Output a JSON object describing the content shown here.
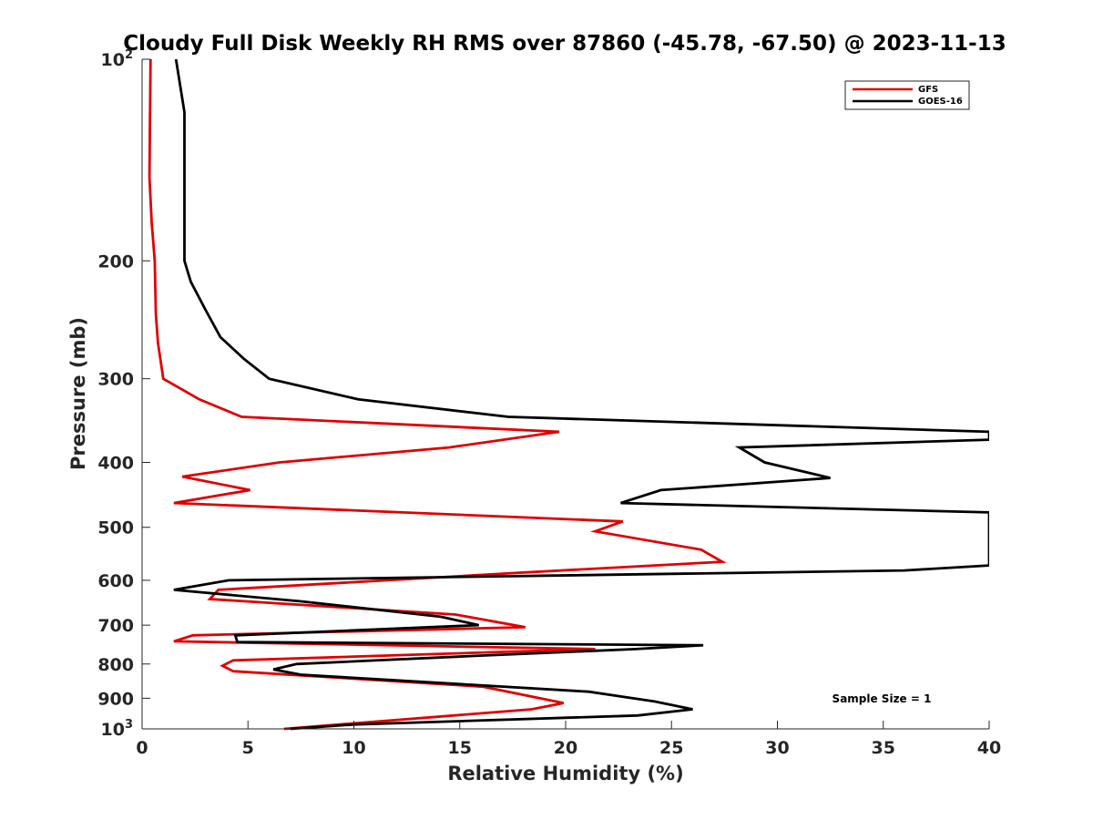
{
  "chart_data": {
    "type": "line",
    "title": "Cloudy Full Disk Weekly RH RMS over 87860 (-45.78, -67.50) @ 2023-11-13",
    "xlabel": "Relative Humidity (%)",
    "ylabel": "Pressure (mb)",
    "xlim": [
      0,
      40
    ],
    "ylim": [
      100,
      1000
    ],
    "y_scale": "log",
    "y_reversed": true,
    "grid": false,
    "legend_position": "top-right",
    "x_ticks": [
      0,
      5,
      10,
      15,
      20,
      25,
      30,
      35,
      40
    ],
    "x_tick_labels": [
      "0",
      "5",
      "10",
      "15",
      "20",
      "25",
      "30",
      "35",
      "40"
    ],
    "y_ticks": [
      100,
      200,
      300,
      400,
      500,
      600,
      700,
      800,
      900,
      1000
    ],
    "y_tick_labels": [
      {
        "base": "10",
        "exp": "2"
      },
      {
        "base": "200",
        "exp": ""
      },
      {
        "base": "300",
        "exp": ""
      },
      {
        "base": "400",
        "exp": ""
      },
      {
        "base": "500",
        "exp": ""
      },
      {
        "base": "600",
        "exp": ""
      },
      {
        "base": "700",
        "exp": ""
      },
      {
        "base": "800",
        "exp": ""
      },
      {
        "base": "900",
        "exp": ""
      },
      {
        "base": "10",
        "exp": "3"
      }
    ],
    "annotation": "Sample Size = 1",
    "series": [
      {
        "name": "GFS",
        "color": "#e00000",
        "points": [
          [
            0.4,
            100
          ],
          [
            0.35,
            150
          ],
          [
            0.45,
            175
          ],
          [
            0.6,
            200
          ],
          [
            0.65,
            240
          ],
          [
            0.75,
            265
          ],
          [
            1.0,
            300
          ],
          [
            2.7,
            322
          ],
          [
            4.7,
            342
          ],
          [
            19.7,
            360
          ],
          [
            14.5,
            380
          ],
          [
            6.5,
            400
          ],
          [
            1.9,
            420
          ],
          [
            5.1,
            440
          ],
          [
            1.5,
            460
          ],
          [
            22.7,
            490
          ],
          [
            21.4,
            507
          ],
          [
            26.4,
            540
          ],
          [
            27.4,
            563
          ],
          [
            17.6,
            585
          ],
          [
            3.6,
            620
          ],
          [
            3.2,
            640
          ],
          [
            14.8,
            675
          ],
          [
            18.1,
            705
          ],
          [
            2.4,
            725
          ],
          [
            1.5,
            740
          ],
          [
            21.4,
            760
          ],
          [
            18.4,
            765
          ],
          [
            4.3,
            790
          ],
          [
            3.8,
            805
          ],
          [
            4.3,
            820
          ],
          [
            16.1,
            865
          ],
          [
            19.9,
            915
          ],
          [
            18.4,
            935
          ],
          [
            6.7,
            1000
          ]
        ]
      },
      {
        "name": "GOES-16",
        "color": "#000000",
        "points": [
          [
            1.6,
            100
          ],
          [
            2.0,
            120
          ],
          [
            2.0,
            175
          ],
          [
            2.0,
            200
          ],
          [
            2.3,
            215
          ],
          [
            3.0,
            237
          ],
          [
            3.7,
            260
          ],
          [
            4.8,
            280
          ],
          [
            6.0,
            300
          ],
          [
            10.2,
            322
          ],
          [
            17.3,
            342
          ],
          [
            40,
            360
          ],
          [
            40,
            370
          ],
          [
            28.2,
            380
          ],
          [
            29.4,
            400
          ],
          [
            32.5,
            422
          ],
          [
            24.5,
            440
          ],
          [
            22.6,
            460
          ],
          [
            40,
            475
          ],
          [
            40,
            570
          ],
          [
            36.0,
            580
          ],
          [
            4.1,
            600
          ],
          [
            1.5,
            620
          ],
          [
            7.5,
            645
          ],
          [
            14.1,
            680
          ],
          [
            15.9,
            700
          ],
          [
            4.4,
            725
          ],
          [
            4.5,
            742
          ],
          [
            26.5,
            750
          ],
          [
            23.3,
            760
          ],
          [
            15.7,
            778
          ],
          [
            7.3,
            800
          ],
          [
            6.2,
            815
          ],
          [
            7.5,
            830
          ],
          [
            21.1,
            880
          ],
          [
            24.2,
            910
          ],
          [
            26.0,
            935
          ],
          [
            23.4,
            955
          ],
          [
            10.0,
            985
          ],
          [
            7.0,
            1000
          ]
        ]
      }
    ]
  }
}
